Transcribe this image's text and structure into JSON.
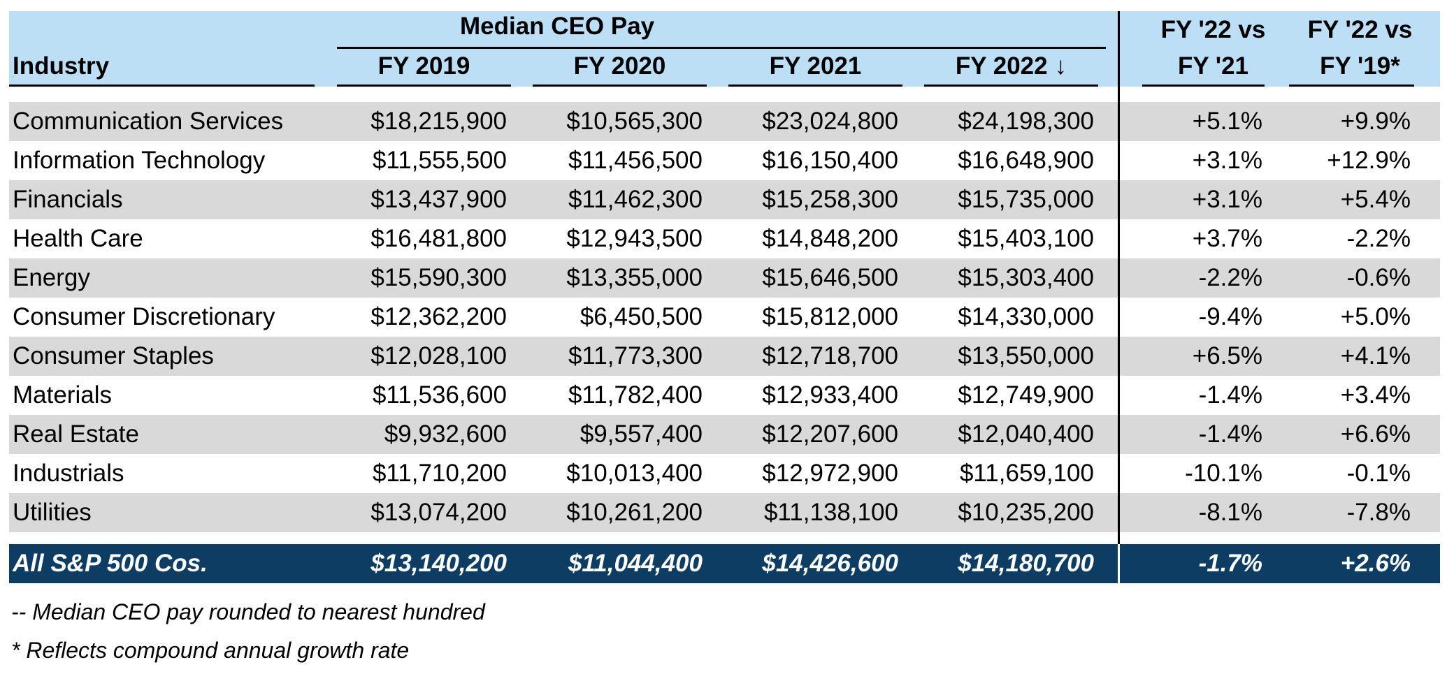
{
  "chart_data": {
    "type": "table",
    "group_header": "Median CEO Pay",
    "columns": [
      "Industry",
      "FY 2019",
      "FY 2020",
      "FY 2021",
      "FY 2022",
      "FY '22 vs",
      "FY '22 vs"
    ],
    "columns_line2": [
      "",
      "",
      "",
      "",
      "",
      "FY '21",
      "FY '19*"
    ],
    "sort_indicator": "↓",
    "rows": [
      [
        "Communication Services",
        "$18,215,900",
        "$10,565,300",
        "$23,024,800",
        "$24,198,300",
        "+5.1%",
        "+9.9%"
      ],
      [
        "Information Technology",
        "$11,555,500",
        "$11,456,500",
        "$16,150,400",
        "$16,648,900",
        "+3.1%",
        "+12.9%"
      ],
      [
        "Financials",
        "$13,437,900",
        "$11,462,300",
        "$15,258,300",
        "$15,735,000",
        "+3.1%",
        "+5.4%"
      ],
      [
        "Health Care",
        "$16,481,800",
        "$12,943,500",
        "$14,848,200",
        "$15,403,100",
        "+3.7%",
        "-2.2%"
      ],
      [
        "Energy",
        "$15,590,300",
        "$13,355,000",
        "$15,646,500",
        "$15,303,400",
        "-2.2%",
        "-0.6%"
      ],
      [
        "Consumer Discretionary",
        "$12,362,200",
        "$6,450,500",
        "$15,812,000",
        "$14,330,000",
        "-9.4%",
        "+5.0%"
      ],
      [
        "Consumer Staples",
        "$12,028,100",
        "$11,773,300",
        "$12,718,700",
        "$13,550,000",
        "+6.5%",
        "+4.1%"
      ],
      [
        "Materials",
        "$11,536,600",
        "$11,782,400",
        "$12,933,400",
        "$12,749,900",
        "-1.4%",
        "+3.4%"
      ],
      [
        "Real Estate",
        "$9,932,600",
        "$9,557,400",
        "$12,207,600",
        "$12,040,400",
        "-1.4%",
        "+6.6%"
      ],
      [
        "Industrials",
        "$11,710,200",
        "$10,013,400",
        "$12,972,900",
        "$11,659,100",
        "-10.1%",
        "-0.1%"
      ],
      [
        "Utilities",
        "$13,074,200",
        "$10,261,200",
        "$11,138,100",
        "$10,235,200",
        "-8.1%",
        "-7.8%"
      ]
    ],
    "total_row": [
      "All S&P 500 Cos.",
      "$13,140,200",
      "$11,044,400",
      "$14,426,600",
      "$14,180,700",
      "-1.7%",
      "+2.6%"
    ]
  },
  "notes": [
    "-- Median CEO pay rounded to nearest hundred",
    "* Reflects compound annual growth rate"
  ],
  "colors": {
    "header_bg": "#bcdff6",
    "stripe_bg": "#d9d9d9",
    "total_bg": "#0d3d63",
    "total_text": "#ffffff"
  }
}
